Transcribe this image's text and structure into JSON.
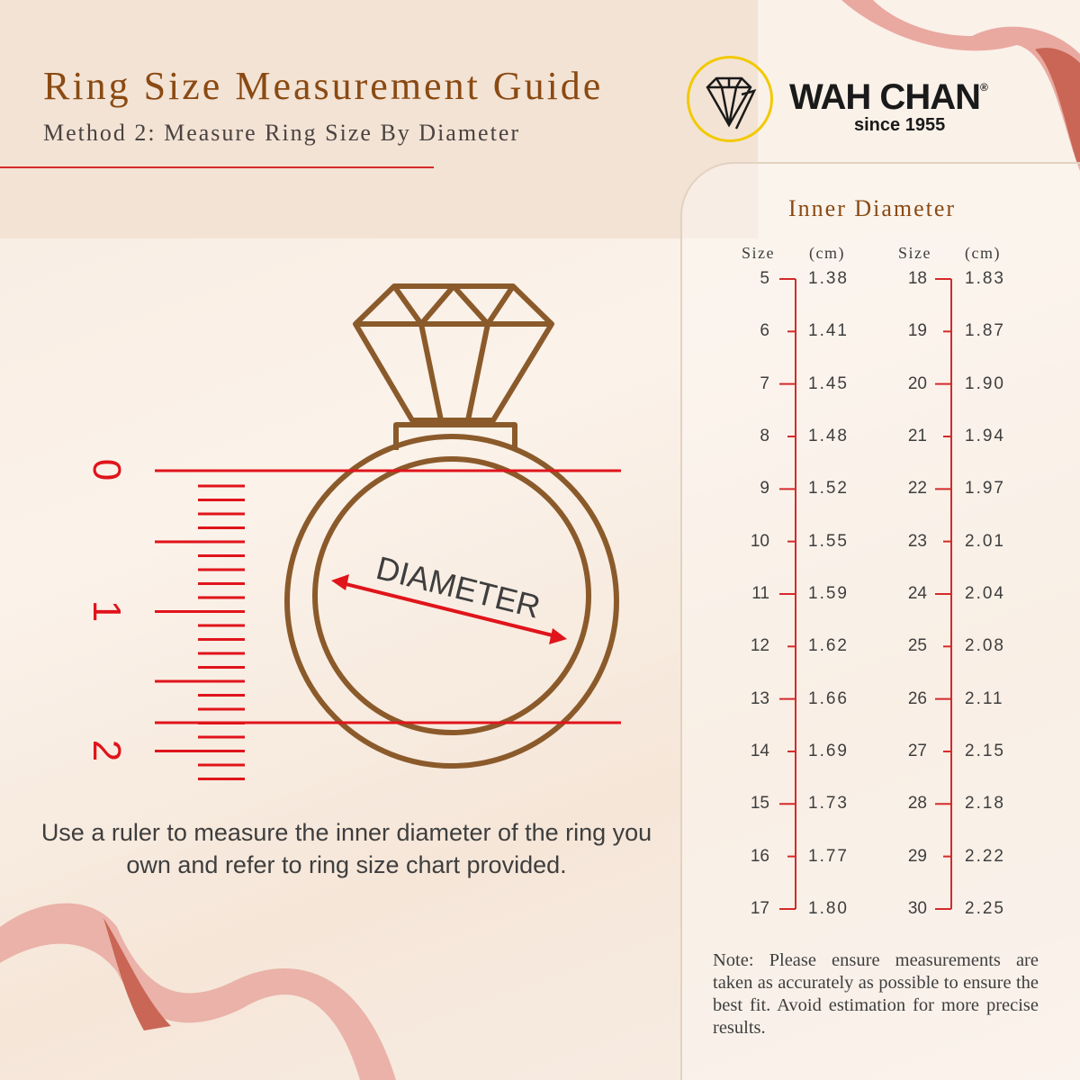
{
  "header": {
    "title": "Ring Size Measurement Guide",
    "subtitle": "Method 2: Measure Ring Size By Diameter"
  },
  "brand": {
    "name": "WAH CHAN",
    "registered": "®",
    "since": "since 1955",
    "logo_icon": "diamond-icon",
    "logo_ring_color": "#f2c900"
  },
  "illustration": {
    "diameter_label": "DIAMETER",
    "ruler_labels": [
      "0",
      "1",
      "2"
    ],
    "ring_color": "#8b5a2b",
    "accent_color": "#e0141b"
  },
  "instruction": "Use a ruler to measure the inner diameter of the ring you own and refer to ring size chart provided.",
  "chart": {
    "title": "Inner Diameter",
    "size_header": "Size",
    "unit_header": "(cm)",
    "columns": [
      {
        "rows": [
          [
            "5",
            "1.38"
          ],
          [
            "6",
            "1.41"
          ],
          [
            "7",
            "1.45"
          ],
          [
            "8",
            "1.48"
          ],
          [
            "9",
            "1.52"
          ],
          [
            "10",
            "1.55"
          ],
          [
            "11",
            "1.59"
          ],
          [
            "12",
            "1.62"
          ],
          [
            "13",
            "1.66"
          ],
          [
            "14",
            "1.69"
          ],
          [
            "15",
            "1.73"
          ],
          [
            "16",
            "1.77"
          ],
          [
            "17",
            "1.80"
          ]
        ]
      },
      {
        "rows": [
          [
            "18",
            "1.83"
          ],
          [
            "19",
            "1.87"
          ],
          [
            "20",
            "1.90"
          ],
          [
            "21",
            "1.94"
          ],
          [
            "22",
            "1.97"
          ],
          [
            "23",
            "2.01"
          ],
          [
            "24",
            "2.04"
          ],
          [
            "25",
            "2.08"
          ],
          [
            "26",
            "2.11"
          ],
          [
            "27",
            "2.15"
          ],
          [
            "28",
            "2.18"
          ],
          [
            "29",
            "2.22"
          ],
          [
            "30",
            "2.25"
          ]
        ]
      }
    ]
  },
  "note": "Note: Please ensure measurements are taken as accurately as possible to ensure the best fit. Avoid estimation for more precise results."
}
